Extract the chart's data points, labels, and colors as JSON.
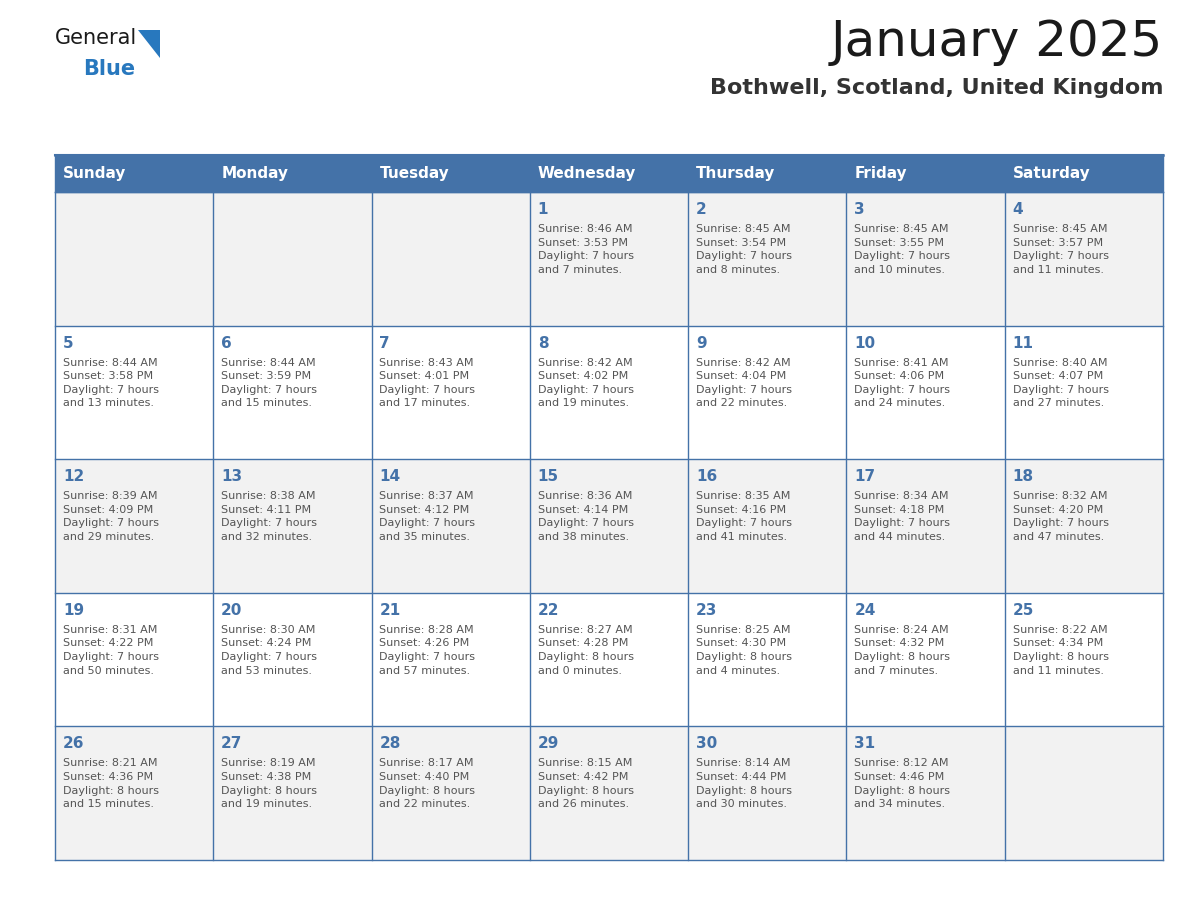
{
  "title": "January 2025",
  "subtitle": "Bothwell, Scotland, United Kingdom",
  "days_of_week": [
    "Sunday",
    "Monday",
    "Tuesday",
    "Wednesday",
    "Thursday",
    "Friday",
    "Saturday"
  ],
  "header_bg": "#4472a8",
  "header_text": "#ffffff",
  "cell_bg_odd": "#f2f2f2",
  "cell_bg_even": "#ffffff",
  "border_color": "#4472a8",
  "day_num_color": "#4472a8",
  "cell_text_color": "#555555",
  "title_color": "#1a1a1a",
  "subtitle_color": "#333333",
  "logo_general_color": "#1a1a1a",
  "logo_blue_color": "#2878be",
  "weeks": [
    [
      {
        "day": "",
        "info": ""
      },
      {
        "day": "",
        "info": ""
      },
      {
        "day": "",
        "info": ""
      },
      {
        "day": "1",
        "info": "Sunrise: 8:46 AM\nSunset: 3:53 PM\nDaylight: 7 hours\nand 7 minutes."
      },
      {
        "day": "2",
        "info": "Sunrise: 8:45 AM\nSunset: 3:54 PM\nDaylight: 7 hours\nand 8 minutes."
      },
      {
        "day": "3",
        "info": "Sunrise: 8:45 AM\nSunset: 3:55 PM\nDaylight: 7 hours\nand 10 minutes."
      },
      {
        "day": "4",
        "info": "Sunrise: 8:45 AM\nSunset: 3:57 PM\nDaylight: 7 hours\nand 11 minutes."
      }
    ],
    [
      {
        "day": "5",
        "info": "Sunrise: 8:44 AM\nSunset: 3:58 PM\nDaylight: 7 hours\nand 13 minutes."
      },
      {
        "day": "6",
        "info": "Sunrise: 8:44 AM\nSunset: 3:59 PM\nDaylight: 7 hours\nand 15 minutes."
      },
      {
        "day": "7",
        "info": "Sunrise: 8:43 AM\nSunset: 4:01 PM\nDaylight: 7 hours\nand 17 minutes."
      },
      {
        "day": "8",
        "info": "Sunrise: 8:42 AM\nSunset: 4:02 PM\nDaylight: 7 hours\nand 19 minutes."
      },
      {
        "day": "9",
        "info": "Sunrise: 8:42 AM\nSunset: 4:04 PM\nDaylight: 7 hours\nand 22 minutes."
      },
      {
        "day": "10",
        "info": "Sunrise: 8:41 AM\nSunset: 4:06 PM\nDaylight: 7 hours\nand 24 minutes."
      },
      {
        "day": "11",
        "info": "Sunrise: 8:40 AM\nSunset: 4:07 PM\nDaylight: 7 hours\nand 27 minutes."
      }
    ],
    [
      {
        "day": "12",
        "info": "Sunrise: 8:39 AM\nSunset: 4:09 PM\nDaylight: 7 hours\nand 29 minutes."
      },
      {
        "day": "13",
        "info": "Sunrise: 8:38 AM\nSunset: 4:11 PM\nDaylight: 7 hours\nand 32 minutes."
      },
      {
        "day": "14",
        "info": "Sunrise: 8:37 AM\nSunset: 4:12 PM\nDaylight: 7 hours\nand 35 minutes."
      },
      {
        "day": "15",
        "info": "Sunrise: 8:36 AM\nSunset: 4:14 PM\nDaylight: 7 hours\nand 38 minutes."
      },
      {
        "day": "16",
        "info": "Sunrise: 8:35 AM\nSunset: 4:16 PM\nDaylight: 7 hours\nand 41 minutes."
      },
      {
        "day": "17",
        "info": "Sunrise: 8:34 AM\nSunset: 4:18 PM\nDaylight: 7 hours\nand 44 minutes."
      },
      {
        "day": "18",
        "info": "Sunrise: 8:32 AM\nSunset: 4:20 PM\nDaylight: 7 hours\nand 47 minutes."
      }
    ],
    [
      {
        "day": "19",
        "info": "Sunrise: 8:31 AM\nSunset: 4:22 PM\nDaylight: 7 hours\nand 50 minutes."
      },
      {
        "day": "20",
        "info": "Sunrise: 8:30 AM\nSunset: 4:24 PM\nDaylight: 7 hours\nand 53 minutes."
      },
      {
        "day": "21",
        "info": "Sunrise: 8:28 AM\nSunset: 4:26 PM\nDaylight: 7 hours\nand 57 minutes."
      },
      {
        "day": "22",
        "info": "Sunrise: 8:27 AM\nSunset: 4:28 PM\nDaylight: 8 hours\nand 0 minutes."
      },
      {
        "day": "23",
        "info": "Sunrise: 8:25 AM\nSunset: 4:30 PM\nDaylight: 8 hours\nand 4 minutes."
      },
      {
        "day": "24",
        "info": "Sunrise: 8:24 AM\nSunset: 4:32 PM\nDaylight: 8 hours\nand 7 minutes."
      },
      {
        "day": "25",
        "info": "Sunrise: 8:22 AM\nSunset: 4:34 PM\nDaylight: 8 hours\nand 11 minutes."
      }
    ],
    [
      {
        "day": "26",
        "info": "Sunrise: 8:21 AM\nSunset: 4:36 PM\nDaylight: 8 hours\nand 15 minutes."
      },
      {
        "day": "27",
        "info": "Sunrise: 8:19 AM\nSunset: 4:38 PM\nDaylight: 8 hours\nand 19 minutes."
      },
      {
        "day": "28",
        "info": "Sunrise: 8:17 AM\nSunset: 4:40 PM\nDaylight: 8 hours\nand 22 minutes."
      },
      {
        "day": "29",
        "info": "Sunrise: 8:15 AM\nSunset: 4:42 PM\nDaylight: 8 hours\nand 26 minutes."
      },
      {
        "day": "30",
        "info": "Sunrise: 8:14 AM\nSunset: 4:44 PM\nDaylight: 8 hours\nand 30 minutes."
      },
      {
        "day": "31",
        "info": "Sunrise: 8:12 AM\nSunset: 4:46 PM\nDaylight: 8 hours\nand 34 minutes."
      },
      {
        "day": "",
        "info": ""
      }
    ]
  ]
}
